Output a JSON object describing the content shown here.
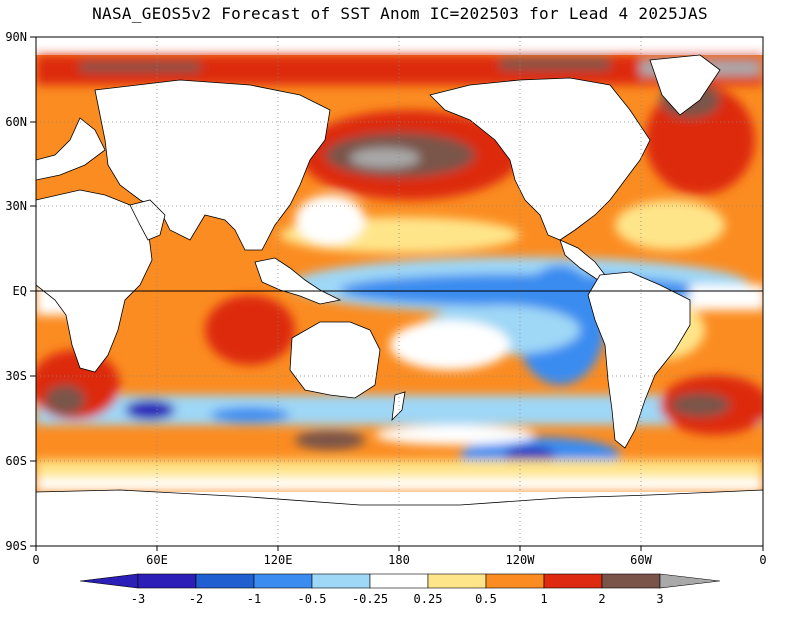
{
  "title": "NASA_GEOS5v2 Forecast of SST Anom IC=202503 for Lead 4 2025JAS",
  "map": {
    "lat_labels": [
      "90N",
      "60N",
      "30N",
      "EQ",
      "30S",
      "60S",
      "90S"
    ],
    "lon_labels": [
      "0",
      "60E",
      "120E",
      "180",
      "120W",
      "60W",
      "0"
    ]
  },
  "colorbar": {
    "labels": [
      "-3",
      "-2",
      "-1",
      "-0.5",
      "-0.25",
      "0.25",
      "0.5",
      "1",
      "2",
      "3"
    ],
    "colors": [
      "#2b1fb8",
      "#1f5fd0",
      "#3b8cf0",
      "#9fd7f6",
      "#ffffff",
      "#ffe58a",
      "#fb8c21",
      "#dd2a10",
      "#7a5448",
      "#a9a9a9"
    ]
  },
  "colors": {
    "land": "#ffffff",
    "cold_strong": "#2b1fb8",
    "cold": "#3b8cf0",
    "cool": "#9fd7f6",
    "warm_light": "#ffe58a",
    "warm": "#fb8c21",
    "hot": "#dd2a10",
    "very_hot": "#7a5448",
    "extreme": "#a9a9a9"
  }
}
